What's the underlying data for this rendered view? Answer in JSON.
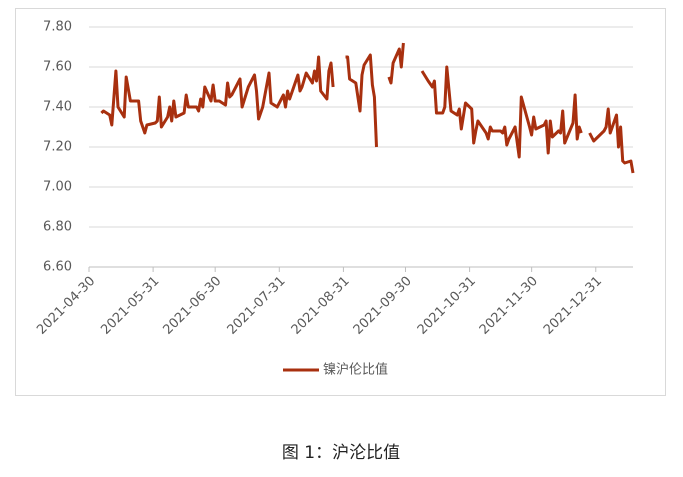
{
  "chart_data": {
    "type": "line",
    "caption": "图 1：沪沦比值",
    "x": [
      "2021-05-06",
      "2021-05-07",
      "2021-05-10",
      "2021-05-11",
      "2021-05-13",
      "2021-05-14",
      "2021-05-17",
      "2021-05-18",
      "2021-05-20",
      "2021-05-24",
      "2021-05-25",
      "2021-05-27",
      "2021-05-28",
      "2021-06-01",
      "2021-06-02",
      "2021-06-03",
      "2021-06-04",
      "2021-06-07",
      "2021-06-08",
      "2021-06-09",
      "2021-06-10",
      "2021-06-11",
      "2021-06-15",
      "2021-06-16",
      "2021-06-17",
      "2021-06-21",
      "2021-06-22",
      "2021-06-23",
      "2021-06-24",
      "2021-06-25",
      "2021-06-28",
      "2021-06-29",
      "2021-06-30",
      "2021-07-02",
      "2021-07-05",
      "2021-07-06",
      "2021-07-07",
      "2021-07-08",
      "2021-07-12",
      "2021-07-13",
      "2021-07-16",
      "2021-07-19",
      "2021-07-20",
      "2021-07-21",
      "2021-07-23",
      "2021-07-26",
      "2021-07-27",
      "2021-07-30",
      "2021-08-02",
      "2021-08-03",
      "2021-08-04",
      "2021-08-05",
      "2021-08-09",
      "2021-08-10",
      "2021-08-11",
      "2021-08-13",
      "2021-08-16",
      "2021-08-17",
      "2021-08-18",
      "2021-08-19",
      "2021-08-20",
      "2021-08-23",
      "2021-08-24",
      "2021-08-25",
      "2021-08-26",
      "2021-08-27",
      "2021-09-01",
      "2021-09-02",
      "2021-09-03",
      "2021-09-06",
      "2021-09-08",
      "2021-09-09",
      "2021-09-10",
      "2021-09-13",
      "2021-09-14",
      "2021-09-15",
      "2021-09-16",
      "2021-09-17",
      "2021-09-22",
      "2021-09-23",
      "2021-09-24",
      "2021-09-27",
      "2021-09-28",
      "2021-09-29",
      "2021-10-01",
      "2021-10-08",
      "2021-10-11",
      "2021-10-13",
      "2021-10-14",
      "2021-10-15",
      "2021-10-18",
      "2021-10-19",
      "2021-10-20",
      "2021-10-22",
      "2021-10-25",
      "2021-10-26",
      "2021-10-27",
      "2021-10-29",
      "2021-11-01",
      "2021-11-02",
      "2021-11-03",
      "2021-11-04",
      "2021-11-08",
      "2021-11-09",
      "2021-11-10",
      "2021-11-11",
      "2021-11-15",
      "2021-11-16",
      "2021-11-17",
      "2021-11-18",
      "2021-11-19",
      "2021-11-22",
      "2021-11-24",
      "2021-11-25",
      "2021-11-29",
      "2021-11-30",
      "2021-12-01",
      "2021-12-02",
      "2021-12-06",
      "2021-12-07",
      "2021-12-08",
      "2021-12-09",
      "2021-12-10",
      "2021-12-13",
      "2021-12-14",
      "2021-12-15",
      "2021-12-16",
      "2021-12-20",
      "2021-12-21",
      "2021-12-22",
      "2021-12-23",
      "2021-12-24",
      "2021-12-27",
      "2021-12-28",
      "2021-12-30",
      "2022-01-04",
      "2022-01-05",
      "2022-01-06",
      "2022-01-07",
      "2022-01-10",
      "2022-01-11",
      "2022-01-12",
      "2022-01-13",
      "2022-01-14",
      "2022-01-17",
      "2022-01-18"
    ],
    "series": [
      {
        "name": "镍沪伦比值",
        "color": "#a8300f",
        "values": [
          7.37,
          7.38,
          7.36,
          7.31,
          7.58,
          7.4,
          7.35,
          7.55,
          7.43,
          7.43,
          7.33,
          7.27,
          7.31,
          7.32,
          7.33,
          7.45,
          7.3,
          7.35,
          7.4,
          7.33,
          7.43,
          7.35,
          7.37,
          7.46,
          7.4,
          7.4,
          7.38,
          7.44,
          7.4,
          7.5,
          7.43,
          7.51,
          7.43,
          7.43,
          7.41,
          7.52,
          7.45,
          7.46,
          7.54,
          7.4,
          7.5,
          7.56,
          7.48,
          7.34,
          7.4,
          7.57,
          7.42,
          7.4,
          7.46,
          7.4,
          7.48,
          7.44,
          7.56,
          7.48,
          7.5,
          7.57,
          7.52,
          7.58,
          7.53,
          7.65,
          7.48,
          7.44,
          7.58,
          7.62,
          7.5,
          null,
          7.65,
          7.65,
          7.54,
          7.52,
          7.38,
          7.56,
          7.61,
          7.66,
          7.51,
          7.45,
          7.2,
          null,
          7.55,
          7.52,
          7.62,
          7.69,
          7.6,
          7.72,
          null,
          7.58,
          7.53,
          7.5,
          7.53,
          7.37,
          7.37,
          7.4,
          7.6,
          7.38,
          7.36,
          7.39,
          7.29,
          7.42,
          7.39,
          7.22,
          7.28,
          7.33,
          7.27,
          7.24,
          7.3,
          7.28,
          7.28,
          7.27,
          7.3,
          7.21,
          7.24,
          7.3,
          7.15,
          7.45,
          7.3,
          7.26,
          7.35,
          7.29,
          7.31,
          7.33,
          7.17,
          7.33,
          7.25,
          7.28,
          7.27,
          7.38,
          7.22,
          7.32,
          7.46,
          7.24,
          7.3,
          7.27,
          null,
          7.27,
          7.23,
          7.28,
          7.3,
          7.39,
          7.27,
          7.36,
          7.2,
          7.3,
          7.13,
          7.12,
          7.13,
          7.07
        ]
      }
    ],
    "xlim": [
      "2021-04-30",
      "2022-01-18"
    ],
    "xticks": [
      "2021-04-30",
      "2021-05-31",
      "2021-06-30",
      "2021-07-31",
      "2021-08-31",
      "2021-09-30",
      "2021-10-31",
      "2021-11-30",
      "2021-12-31"
    ],
    "ylim": [
      6.6,
      7.8
    ],
    "yticks": [
      {
        "value": 6.6,
        "label": "6.60"
      },
      {
        "value": 6.8,
        "label": "6.80"
      },
      {
        "value": 7.0,
        "label": "7.00"
      },
      {
        "value": 7.2,
        "label": "7.20"
      },
      {
        "value": 7.4,
        "label": "7.40"
      },
      {
        "value": 7.6,
        "label": "7.60"
      },
      {
        "value": 7.8,
        "label": "7.80"
      }
    ],
    "grid": true,
    "legend": "bottom"
  }
}
